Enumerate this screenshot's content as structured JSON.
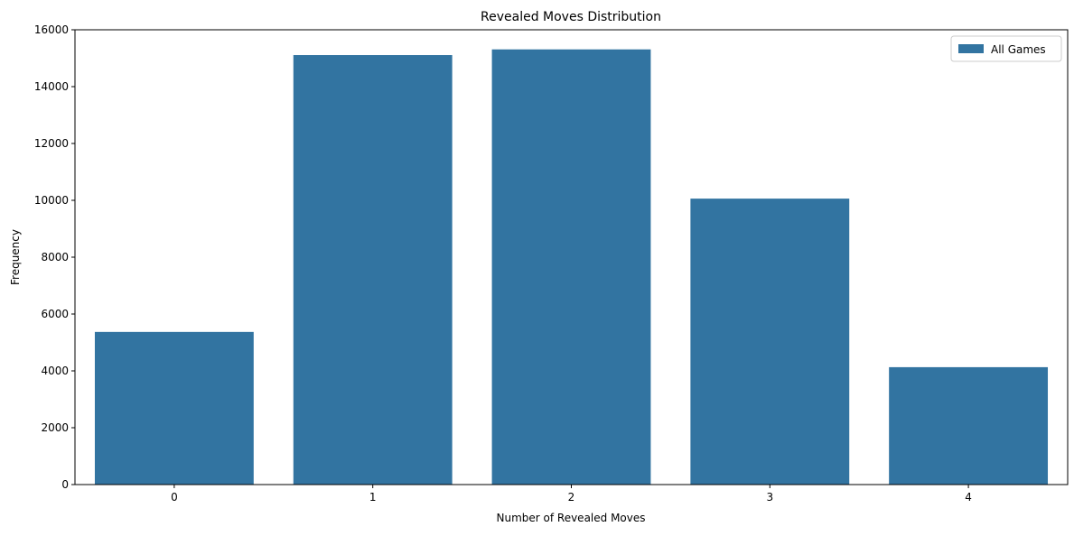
{
  "chart_data": {
    "type": "bar",
    "title": "Revealed Moves Distribution",
    "xlabel": "Number of Revealed Moves",
    "ylabel": "Frequency",
    "categories": [
      "0",
      "1",
      "2",
      "3",
      "4"
    ],
    "series": [
      {
        "name": "All Games",
        "values": [
          5370,
          15110,
          15310,
          10060,
          4130
        ]
      }
    ],
    "ylim": [
      0,
      16000
    ],
    "yticks": [
      "0",
      "2000",
      "4000",
      "6000",
      "8000",
      "10000",
      "12000",
      "14000",
      "16000"
    ],
    "grid": false,
    "legend_position": "top-right",
    "bar_color": "#3274a1"
  }
}
